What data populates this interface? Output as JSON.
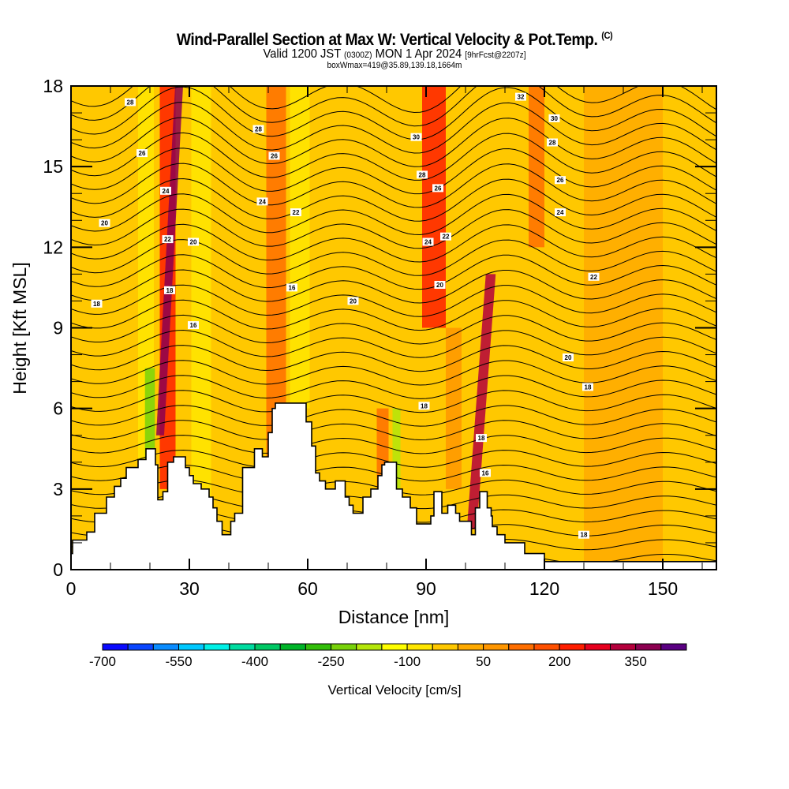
{
  "header": {
    "title": "Wind-Parallel Section at Max W: Vertical Velocity & Pot.Temp.",
    "copyright": "(C)",
    "valid_prefix": "Valid 1200 JST",
    "valid_utc": "(0300Z)",
    "valid_date": "MON 1 Apr 2024",
    "forecast": "[9hrFcst@2207z]",
    "box_info": "boxWmax=419@35.89,139.18,1664m"
  },
  "chart_data": {
    "type": "heatmap",
    "title": "Wind-Parallel Section at Max W: Vertical Velocity & Pot.Temp.",
    "xlabel": "Distance [nm]",
    "ylabel": "Height [Kft MSL]",
    "xlim": [
      0,
      163.6
    ],
    "ylim": [
      0,
      18
    ],
    "x_ticks": [
      0,
      30,
      60,
      90,
      120,
      150
    ],
    "x_tick_labels": [
      "0",
      "30",
      "60",
      "90",
      "120",
      "150"
    ],
    "x_minor_step": 10,
    "y_ticks": [
      0,
      3,
      6,
      9,
      12,
      15,
      18
    ],
    "y_tick_labels": [
      "0",
      "3",
      "6",
      "9",
      "12",
      "15",
      "18"
    ],
    "y_minor_step": 1,
    "colorbar": {
      "label": "Vertical Velocity [cm/s]",
      "min": -700,
      "step": 50,
      "tick_values": [
        -700,
        -550,
        -400,
        -250,
        -100,
        50,
        200,
        350
      ],
      "tick_labels": [
        "-700",
        "-550",
        "-400",
        "-250",
        "-100",
        "50",
        "200",
        "350"
      ],
      "colors": [
        "#0a0aff",
        "#0a46ff",
        "#0a8cff",
        "#00c8ff",
        "#00f0e6",
        "#00dca0",
        "#00c864",
        "#00b428",
        "#32be0a",
        "#78d20a",
        "#b4e60a",
        "#ffff00",
        "#ffe600",
        "#ffc800",
        "#ffaa00",
        "#ff9600",
        "#ff6e00",
        "#ff5000",
        "#ff1e00",
        "#e6001e",
        "#b4003c",
        "#8c0050",
        "#5a0082"
      ]
    },
    "velocity_bands": [
      {
        "x_center": 10,
        "width": 14,
        "height_range": [
          0,
          18
        ],
        "value": -25
      },
      {
        "x_center": 19,
        "width": 4,
        "height_range": [
          0,
          18
        ],
        "value": -100
      },
      {
        "x_center": 20,
        "width": 2.5,
        "height_range": [
          3.3,
          7.5
        ],
        "value": -250
      },
      {
        "x_center": 24.5,
        "width": 4,
        "height_range": [
          3,
          18
        ],
        "value": 200
      },
      {
        "x_center": 25,
        "width": 2,
        "height_range": [
          5,
          18
        ],
        "value": 350
      },
      {
        "x_center": 33,
        "width": 5,
        "height_range": [
          0,
          18
        ],
        "value": -75
      },
      {
        "x_center": 52,
        "width": 5,
        "height_range": [
          0,
          18
        ],
        "value": 100
      },
      {
        "x_center": 58,
        "width": 5,
        "height_range": [
          6,
          18
        ],
        "value": -75
      },
      {
        "x_center": 79,
        "width": 3,
        "height_range": [
          2,
          6
        ],
        "value": 100
      },
      {
        "x_center": 82.5,
        "width": 2,
        "height_range": [
          2,
          6
        ],
        "value": -200
      },
      {
        "x_center": 92,
        "width": 6,
        "height_range": [
          9,
          18
        ],
        "value": 200
      },
      {
        "x_center": 97,
        "width": 4,
        "height_range": [
          3,
          9
        ],
        "value": 75
      },
      {
        "x_center": 104,
        "width": 2.5,
        "height_range": [
          1.5,
          11
        ],
        "value": 300
      },
      {
        "x_center": 118,
        "width": 4,
        "height_range": [
          12,
          18
        ],
        "value": 100
      },
      {
        "x_center": 140,
        "width": 20,
        "height_range": [
          0,
          18
        ],
        "value": 0
      }
    ],
    "contour_labels": [
      {
        "x": 15,
        "y": 17.4,
        "label": "28"
      },
      {
        "x": 18,
        "y": 15.5,
        "label": "26"
      },
      {
        "x": 24,
        "y": 14.1,
        "label": "24"
      },
      {
        "x": 24.5,
        "y": 12.3,
        "label": "22"
      },
      {
        "x": 25,
        "y": 10.4,
        "label": "18"
      },
      {
        "x": 8.5,
        "y": 12.9,
        "label": "20"
      },
      {
        "x": 6.5,
        "y": 9.9,
        "label": "18"
      },
      {
        "x": 31,
        "y": 12.2,
        "label": "20"
      },
      {
        "x": 31,
        "y": 9.1,
        "label": "16"
      },
      {
        "x": 47.5,
        "y": 16.4,
        "label": "28"
      },
      {
        "x": 51.5,
        "y": 15.4,
        "label": "26"
      },
      {
        "x": 48.5,
        "y": 13.7,
        "label": "24"
      },
      {
        "x": 57,
        "y": 13.3,
        "label": "22"
      },
      {
        "x": 56,
        "y": 10.5,
        "label": "16"
      },
      {
        "x": 71.5,
        "y": 10.0,
        "label": "20"
      },
      {
        "x": 87.5,
        "y": 16.1,
        "label": "30"
      },
      {
        "x": 89,
        "y": 14.7,
        "label": "28"
      },
      {
        "x": 93,
        "y": 14.2,
        "label": "26"
      },
      {
        "x": 90.5,
        "y": 12.2,
        "label": "24"
      },
      {
        "x": 95,
        "y": 12.4,
        "label": "22"
      },
      {
        "x": 93.5,
        "y": 10.6,
        "label": "20"
      },
      {
        "x": 89.5,
        "y": 6.1,
        "label": "18"
      },
      {
        "x": 104,
        "y": 4.9,
        "label": "18"
      },
      {
        "x": 105,
        "y": 3.6,
        "label": "16"
      },
      {
        "x": 114,
        "y": 17.6,
        "label": "32"
      },
      {
        "x": 122.5,
        "y": 16.8,
        "label": "30"
      },
      {
        "x": 122,
        "y": 15.9,
        "label": "28"
      },
      {
        "x": 124,
        "y": 14.5,
        "label": "26"
      },
      {
        "x": 124,
        "y": 13.3,
        "label": "24"
      },
      {
        "x": 132.5,
        "y": 10.9,
        "label": "22"
      },
      {
        "x": 126,
        "y": 7.9,
        "label": "20"
      },
      {
        "x": 131,
        "y": 6.8,
        "label": "18"
      },
      {
        "x": 130,
        "y": 1.3,
        "label": "18"
      }
    ],
    "terrain_profile": [
      [
        0,
        0.6
      ],
      [
        0.4,
        0.6
      ],
      [
        0.4,
        1.1
      ],
      [
        4,
        1.1
      ],
      [
        4,
        1.4
      ],
      [
        6,
        1.4
      ],
      [
        6,
        2.1
      ],
      [
        9,
        2.1
      ],
      [
        9,
        2.7
      ],
      [
        11,
        2.7
      ],
      [
        11,
        3.1
      ],
      [
        12.6,
        3.1
      ],
      [
        12.6,
        3.4
      ],
      [
        14,
        3.4
      ],
      [
        14,
        3.8
      ],
      [
        17,
        3.8
      ],
      [
        17,
        4.1
      ],
      [
        19,
        4.1
      ],
      [
        19,
        4.5
      ],
      [
        21.4,
        4.5
      ],
      [
        21.4,
        3.9
      ],
      [
        22,
        3.9
      ],
      [
        22,
        2.6
      ],
      [
        23.3,
        2.6
      ],
      [
        23.3,
        2.9
      ],
      [
        24.5,
        2.9
      ],
      [
        24.5,
        4.0
      ],
      [
        26,
        4.0
      ],
      [
        26,
        4.2
      ],
      [
        29,
        4.2
      ],
      [
        29,
        3.8
      ],
      [
        30,
        3.8
      ],
      [
        30,
        3.5
      ],
      [
        31,
        3.5
      ],
      [
        31,
        3.2
      ],
      [
        33,
        3.2
      ],
      [
        33,
        3.0
      ],
      [
        35,
        3.0
      ],
      [
        35,
        2.7
      ],
      [
        36,
        2.7
      ],
      [
        36,
        2.3
      ],
      [
        37,
        2.3
      ],
      [
        37,
        1.8
      ],
      [
        38.3,
        1.8
      ],
      [
        38.3,
        1.3
      ],
      [
        40.5,
        1.3
      ],
      [
        40.5,
        1.8
      ],
      [
        41.5,
        1.8
      ],
      [
        41.5,
        2.1
      ],
      [
        43.5,
        2.1
      ],
      [
        43.5,
        3.8
      ],
      [
        46.5,
        3.8
      ],
      [
        46.5,
        4.5
      ],
      [
        48.5,
        4.5
      ],
      [
        48.5,
        4.2
      ],
      [
        50,
        4.2
      ],
      [
        50,
        5.1
      ],
      [
        51,
        5.1
      ],
      [
        51,
        6.0
      ],
      [
        51.8,
        6.0
      ],
      [
        51.8,
        6.2
      ],
      [
        54.8,
        6.2
      ],
      [
        55,
        6.2
      ],
      [
        55,
        6.2
      ],
      [
        59.6,
        6.2
      ],
      [
        59.6,
        5.5
      ],
      [
        61,
        5.5
      ],
      [
        61,
        4.6
      ],
      [
        62,
        4.6
      ],
      [
        62,
        3.6
      ],
      [
        63,
        3.6
      ],
      [
        63,
        3.3
      ],
      [
        64.5,
        3.3
      ],
      [
        64.5,
        3.0
      ],
      [
        67,
        3.0
      ],
      [
        67,
        3.3
      ],
      [
        69.5,
        3.3
      ],
      [
        69.5,
        2.7
      ],
      [
        70.5,
        2.7
      ],
      [
        70.5,
        2.4
      ],
      [
        71.5,
        2.4
      ],
      [
        71.5,
        2.1
      ],
      [
        74,
        2.1
      ],
      [
        74,
        2.7
      ],
      [
        76,
        2.7
      ],
      [
        76,
        3.0
      ],
      [
        77.8,
        3.0
      ],
      [
        77.8,
        3.5
      ],
      [
        78.8,
        3.5
      ],
      [
        78.8,
        3.9
      ],
      [
        79.5,
        3.9
      ],
      [
        79.5,
        4.0
      ],
      [
        82.5,
        4.0
      ],
      [
        82.5,
        3.0
      ],
      [
        84,
        3.0
      ],
      [
        84,
        2.7
      ],
      [
        86,
        2.7
      ],
      [
        86,
        2.3
      ],
      [
        87.6,
        2.3
      ],
      [
        87.6,
        1.7
      ],
      [
        91.2,
        1.7
      ],
      [
        91.2,
        2.0
      ],
      [
        92,
        2.0
      ],
      [
        92,
        2.9
      ],
      [
        94,
        2.9
      ],
      [
        94,
        2.1
      ],
      [
        95.5,
        2.1
      ],
      [
        95.5,
        2.4
      ],
      [
        97.5,
        2.4
      ],
      [
        97.5,
        2.1
      ],
      [
        98.5,
        2.1
      ],
      [
        98.5,
        1.8
      ],
      [
        101.5,
        1.8
      ],
      [
        101.5,
        1.3
      ],
      [
        102.5,
        1.3
      ],
      [
        102.5,
        2.3
      ],
      [
        103.6,
        2.3
      ],
      [
        103.6,
        2.9
      ],
      [
        105.5,
        2.9
      ],
      [
        105.5,
        2.3
      ],
      [
        106.5,
        2.3
      ],
      [
        106.5,
        2.0
      ],
      [
        106.8,
        2.0
      ],
      [
        106.8,
        1.6
      ],
      [
        108,
        1.6
      ],
      [
        108,
        1.3
      ],
      [
        110,
        1.3
      ],
      [
        110,
        1.0
      ],
      [
        115,
        1.0
      ],
      [
        115,
        0.6
      ],
      [
        120,
        0.6
      ],
      [
        120,
        0.3
      ],
      [
        163.6,
        0.3
      ]
    ]
  }
}
